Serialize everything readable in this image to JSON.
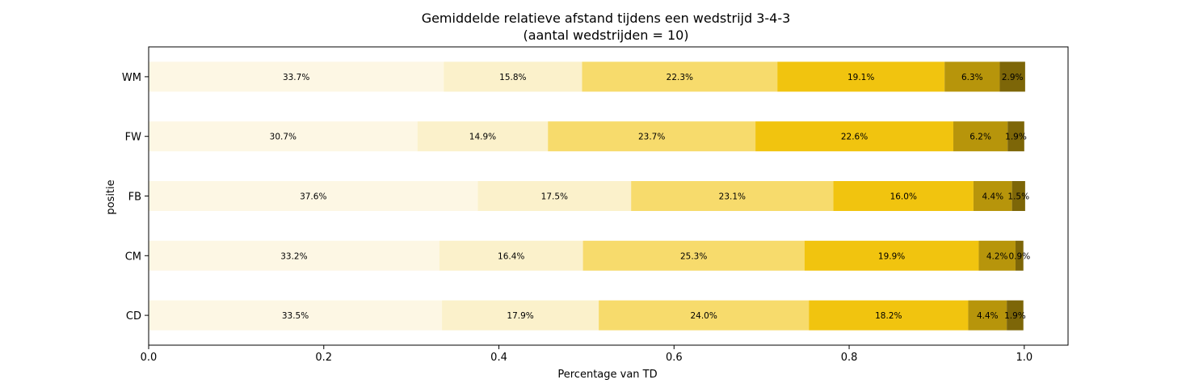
{
  "chart_data": {
    "type": "bar",
    "orientation": "horizontal",
    "stacked": true,
    "title": "Gemiddelde relatieve afstand tijdens een wedstrijd 3-4-3",
    "subtitle": "(aantal wedstrijden = 10)",
    "xlabel": "Percentage van TD",
    "ylabel": "positie",
    "xlim": [
      0.0,
      1.05
    ],
    "xticks": [
      0.0,
      0.2,
      0.4,
      0.6,
      0.8,
      1.0
    ],
    "xtick_labels": [
      "0.0",
      "0.2",
      "0.4",
      "0.6",
      "0.8",
      "1.0"
    ],
    "grid": false,
    "legend": "none",
    "categories": [
      "WM",
      "FW",
      "FB",
      "CM",
      "CD"
    ],
    "segment_colors": [
      "#fdf7e4",
      "#fbf1cb",
      "#f7db6c",
      "#f1c40f",
      "#b7950b",
      "#7d6608"
    ],
    "rows": [
      {
        "category": "WM",
        "values": [
          0.337,
          0.158,
          0.223,
          0.191,
          0.063,
          0.029
        ],
        "labels": [
          "33.7%",
          "15.8%",
          "22.3%",
          "19.1%",
          "6.3%",
          "2.9%"
        ]
      },
      {
        "category": "FW",
        "values": [
          0.307,
          0.149,
          0.237,
          0.226,
          0.062,
          0.019
        ],
        "labels": [
          "30.7%",
          "14.9%",
          "23.7%",
          "22.6%",
          "6.2%",
          "1.9%"
        ]
      },
      {
        "category": "FB",
        "values": [
          0.376,
          0.175,
          0.231,
          0.16,
          0.044,
          0.015
        ],
        "labels": [
          "37.6%",
          "17.5%",
          "23.1%",
          "16.0%",
          "4.4%",
          "1.5%"
        ]
      },
      {
        "category": "CM",
        "values": [
          0.332,
          0.164,
          0.253,
          0.199,
          0.042,
          0.009
        ],
        "labels": [
          "33.2%",
          "16.4%",
          "25.3%",
          "19.9%",
          "4.2%",
          "0.9%"
        ]
      },
      {
        "category": "CD",
        "values": [
          0.335,
          0.179,
          0.24,
          0.182,
          0.044,
          0.019
        ],
        "labels": [
          "33.5%",
          "17.9%",
          "24.0%",
          "18.2%",
          "4.4%",
          "1.9%"
        ]
      }
    ]
  }
}
